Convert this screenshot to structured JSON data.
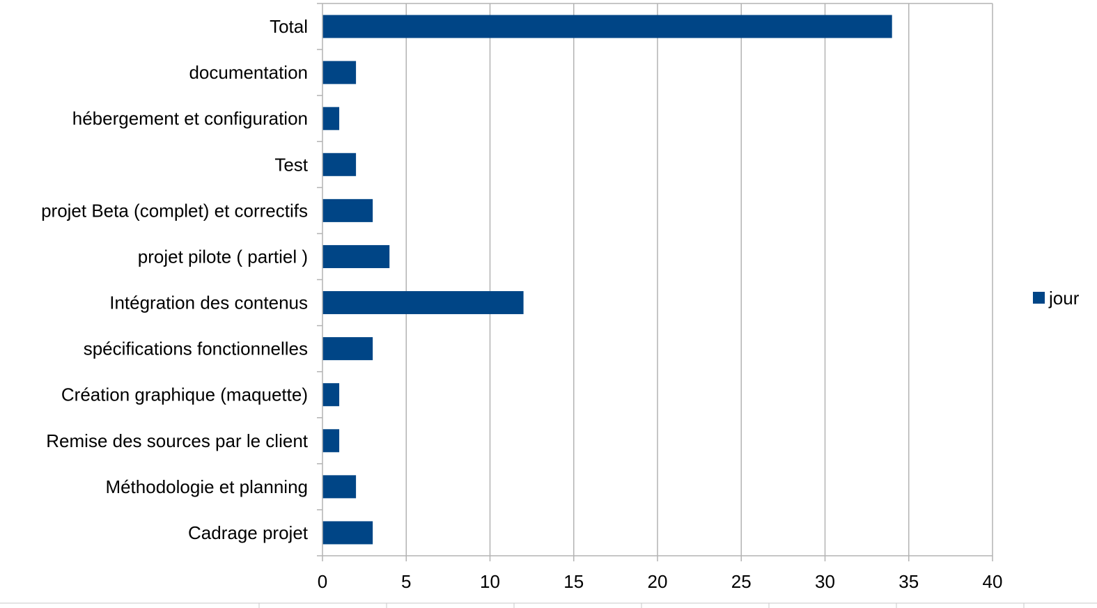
{
  "chart_data": {
    "type": "bar",
    "orientation": "horizontal",
    "categories": [
      "Total",
      "documentation",
      "hébergement et configuration",
      "Test",
      "projet Beta (complet) et correctifs",
      "projet pilote ( partiel )",
      "Intégration des contenus",
      "spécifications fonctionnelles",
      "Création graphique (maquette)",
      "Remise des sources par le client",
      "Méthodologie et planning",
      "Cadrage projet"
    ],
    "series": [
      {
        "name": "jour",
        "values": [
          34,
          2,
          1,
          2,
          3,
          4,
          12,
          3,
          1,
          1,
          2,
          3
        ]
      }
    ],
    "xlim": [
      0,
      40
    ],
    "xticks": [
      "0",
      "5",
      "10",
      "15",
      "20",
      "25",
      "30",
      "35",
      "40"
    ],
    "grid": "vertical",
    "legend_position": "right",
    "title": "",
    "xlabel": "",
    "ylabel": "",
    "colors": {
      "bar": "#004586",
      "grid": "#b3b3b3",
      "axis": "#b3b3b3"
    }
  }
}
